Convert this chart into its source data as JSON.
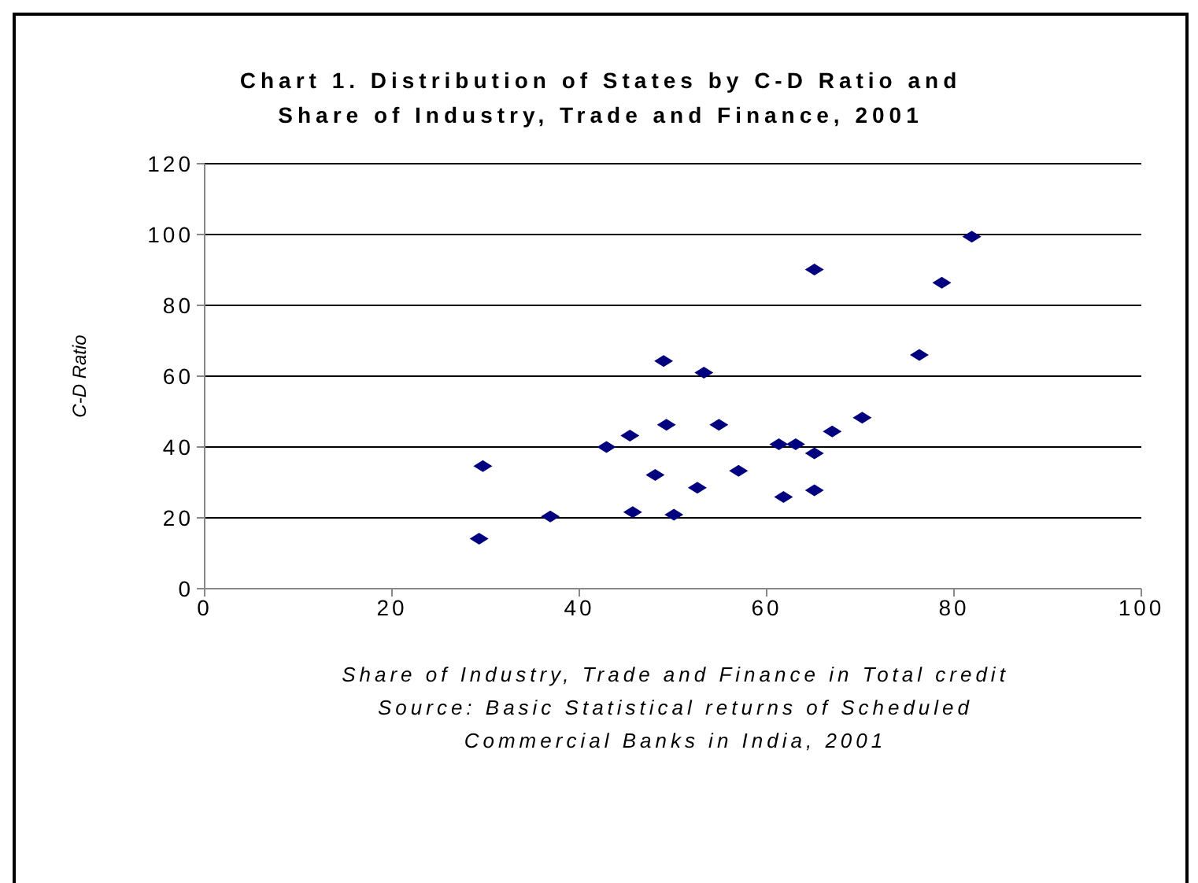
{
  "chart_data": {
    "type": "scatter",
    "title": "Chart 1. Distribution of States by C-D Ratio and Share of Industry, Trade and Finance, 2001",
    "xlabel": "Share of Industry, Trade and Finance in Total credit",
    "ylabel": "C-D Ratio",
    "annotations": [
      "Source: Basic Statistical returns of Scheduled Commercial Banks in India, 2001"
    ],
    "x": [
      65.1,
      49.0,
      53.3,
      49.3,
      54.9,
      70.2,
      67.0,
      45.4,
      42.9,
      61.3,
      63.1,
      65.1,
      29.7,
      57.0,
      48.1,
      52.6,
      65.1,
      61.8,
      45.7,
      50.1,
      36.9,
      29.3,
      81.9,
      78.7,
      76.3
    ],
    "series": [
      {
        "color": "#000080",
        "values": [
          90.1,
          64.3,
          61.0,
          46.3,
          46.3,
          48.3,
          44.4,
          43.2,
          40.0,
          40.8,
          40.8,
          38.2,
          34.6,
          33.3,
          32.1,
          28.5,
          27.8,
          25.9,
          21.6,
          20.9,
          20.4,
          14.1,
          99.4,
          86.4,
          66.0
        ]
      }
    ],
    "xlim": [
      0,
      100
    ],
    "xticks": [
      0,
      20,
      40,
      60,
      80,
      100
    ],
    "ylim": [
      0,
      120
    ],
    "yticks": [
      0,
      20,
      40,
      60,
      80,
      100,
      120
    ],
    "grid": "y",
    "legend": false,
    "marker": "diamond"
  }
}
